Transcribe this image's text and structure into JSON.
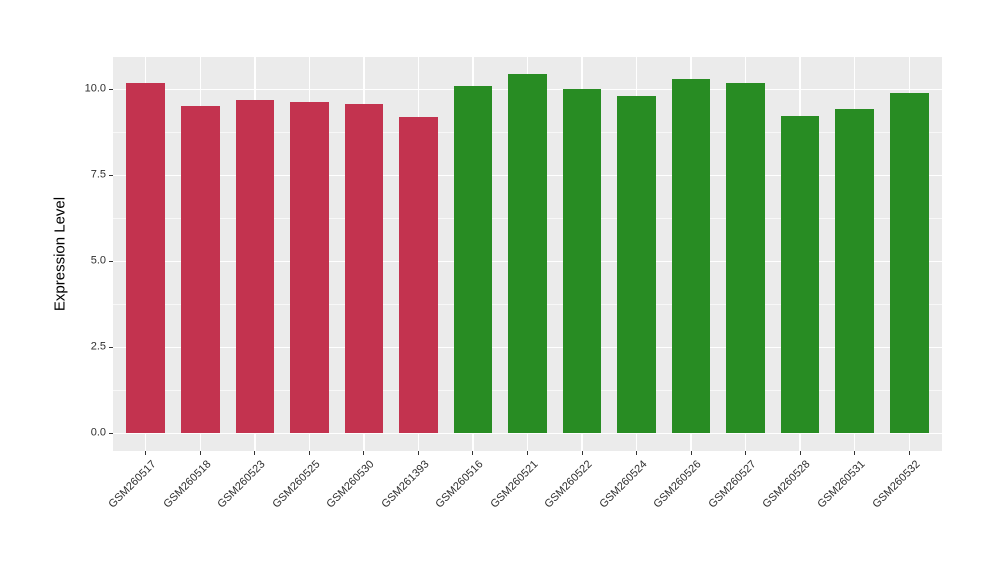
{
  "chart_data": {
    "type": "bar",
    "title": "",
    "xlabel": "",
    "ylabel": "Expression Level",
    "categories": [
      "GSM260517",
      "GSM260518",
      "GSM260523",
      "GSM260525",
      "GSM260530",
      "GSM261393",
      "GSM260516",
      "GSM260521",
      "GSM260522",
      "GSM260524",
      "GSM260526",
      "GSM260527",
      "GSM260528",
      "GSM260531",
      "GSM260532"
    ],
    "values": [
      10.17,
      9.53,
      9.69,
      9.64,
      9.58,
      9.2,
      10.1,
      10.44,
      10.01,
      9.82,
      10.3,
      10.17,
      9.23,
      9.43,
      9.88
    ],
    "bar_colors": [
      "#C3334F",
      "#C3334F",
      "#C3334F",
      "#C3334F",
      "#C3334F",
      "#C3334F",
      "#288C23",
      "#288C23",
      "#288C23",
      "#288C23",
      "#288C23",
      "#288C23",
      "#288C23",
      "#288C23",
      "#288C23"
    ],
    "y_major_ticks": [
      0.0,
      2.5,
      5.0,
      7.5,
      10.0
    ],
    "y_tick_labels": [
      "0.0",
      "2.5",
      "5.0",
      "7.5",
      "10.0"
    ],
    "y_minor_gridlines": [
      1.25,
      3.75,
      6.25,
      8.75
    ],
    "ylim": [
      -0.51,
      10.94
    ],
    "grid": true,
    "legend": "none",
    "panel_background": "#EBEBEB",
    "grid_color": "#FFFFFF",
    "tick_color": "#333333"
  }
}
